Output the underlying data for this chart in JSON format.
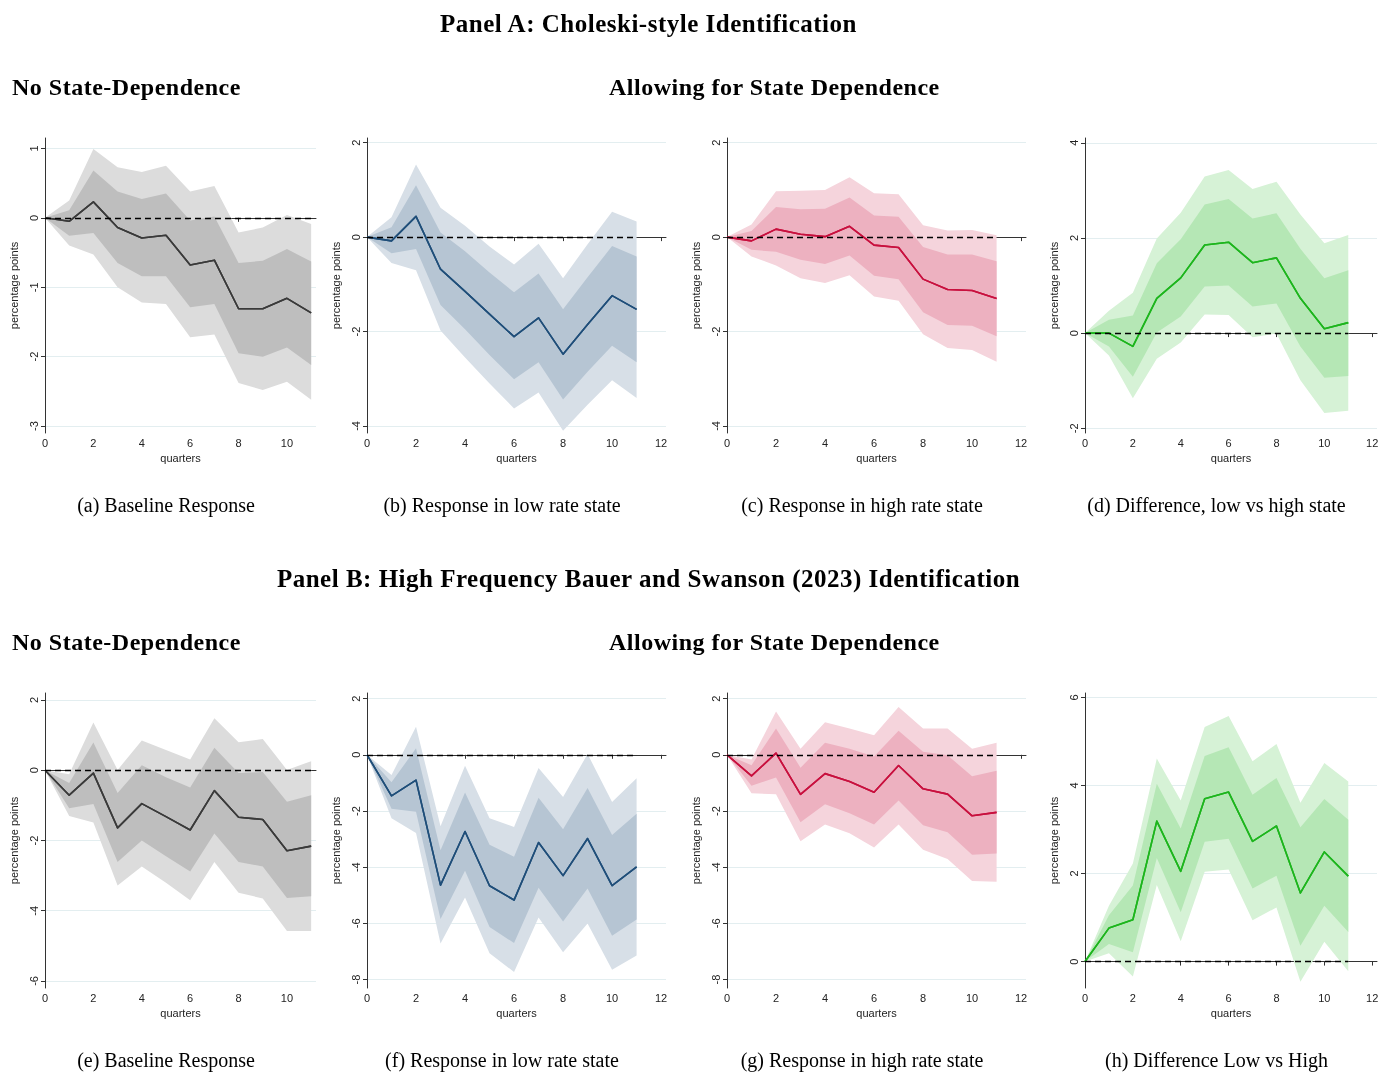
{
  "chart_data": [
    {
      "type": "other",
      "title": "Panel A: Choleski-style Identification",
      "annotations": [
        "No State-Dependence",
        "Allowing for State Dependence"
      ]
    },
    {
      "type": "line",
      "xlabel": "quarters",
      "ylabel": "percentage points",
      "annotations": [
        "(a) Baseline Response"
      ],
      "x": [
        0,
        1,
        2,
        3,
        4,
        5,
        6,
        7,
        8,
        9,
        10,
        11
      ],
      "xlim": [
        0,
        11.2
      ],
      "xticks": [
        0,
        2,
        4,
        6,
        8,
        10
      ],
      "ylim": [
        -3.1,
        1.15
      ],
      "yticks": [
        -3,
        -2,
        -1,
        0,
        1
      ],
      "grid": "y",
      "marker": "none",
      "ref_lines": [
        {
          "axis": "y",
          "value": 0,
          "line_style": "dashed",
          "color": "#000000"
        }
      ],
      "series": [
        {
          "color": "#3a3a3a",
          "values": [
            0,
            -0.05,
            0.23,
            -0.14,
            -0.29,
            -0.25,
            -0.68,
            -0.61,
            -1.31,
            -1.31,
            -1.16,
            -1.37
          ],
          "lower": [
            0,
            -0.4,
            -0.53,
            -1.0,
            -1.22,
            -1.24,
            -1.72,
            -1.68,
            -2.38,
            -2.48,
            -2.36,
            -2.62
          ],
          "upper": [
            0,
            0.25,
            0.99,
            0.73,
            0.66,
            0.75,
            0.38,
            0.46,
            -0.21,
            -0.14,
            0.04,
            -0.09
          ]
        },
        {
          "color": "#3a3a3a",
          "values": [
            0,
            -0.05,
            0.23,
            -0.14,
            -0.29,
            -0.25,
            -0.68,
            -0.61,
            -1.31,
            -1.31,
            -1.16,
            -1.37
          ],
          "lower": [
            0,
            -0.26,
            -0.22,
            -0.65,
            -0.84,
            -0.84,
            -1.29,
            -1.24,
            -1.95,
            -2.0,
            -1.87,
            -2.12
          ],
          "upper": [
            0,
            0.11,
            0.68,
            0.38,
            0.27,
            0.35,
            -0.04,
            0.02,
            -0.65,
            -0.62,
            -0.45,
            -0.63
          ]
        }
      ]
    },
    {
      "type": "line",
      "xlabel": "quarters",
      "ylabel": "percentage points",
      "annotations": [
        "(b) Response in low rate state"
      ],
      "x": [
        0,
        1,
        2,
        3,
        4,
        5,
        6,
        7,
        8,
        9,
        10,
        11
      ],
      "xlim": [
        0,
        12.2
      ],
      "xticks": [
        0,
        2,
        4,
        6,
        8,
        10,
        12
      ],
      "ylim": [
        -4.15,
        2.1
      ],
      "yticks": [
        -4,
        -2,
        0,
        2
      ],
      "grid": "y",
      "marker": "none",
      "ref_lines": [
        {
          "axis": "y",
          "value": 0,
          "line_style": "dashed",
          "color": "#000000"
        }
      ],
      "series": [
        {
          "color": "#1f4e79",
          "values": [
            0,
            -0.08,
            0.44,
            -0.68,
            -1.15,
            -1.63,
            -2.11,
            -1.71,
            -2.48,
            -1.85,
            -1.24,
            -1.53
          ],
          "lower": [
            0,
            -0.55,
            -0.7,
            -1.98,
            -2.55,
            -3.1,
            -3.63,
            -3.29,
            -4.1,
            -3.55,
            -3.03,
            -3.41
          ],
          "upper": [
            0,
            0.42,
            1.54,
            0.62,
            0.24,
            -0.2,
            -0.58,
            -0.14,
            -0.87,
            -0.15,
            0.54,
            0.33
          ]
        },
        {
          "color": "#1f4e79",
          "values": [
            0,
            -0.08,
            0.44,
            -0.68,
            -1.15,
            -1.63,
            -2.11,
            -1.71,
            -2.48,
            -1.85,
            -1.24,
            -1.53
          ],
          "lower": [
            0,
            -0.34,
            -0.25,
            -1.44,
            -1.95,
            -2.5,
            -3.01,
            -2.65,
            -3.44,
            -2.85,
            -2.3,
            -2.65
          ],
          "upper": [
            0,
            0.21,
            1.1,
            0.1,
            -0.3,
            -0.75,
            -1.17,
            -0.77,
            -1.53,
            -0.85,
            -0.19,
            -0.41
          ]
        }
      ]
    },
    {
      "type": "line",
      "xlabel": "quarters",
      "ylabel": "percentage points",
      "annotations": [
        "(c) Response in high rate state"
      ],
      "x": [
        0,
        1,
        2,
        3,
        4,
        5,
        6,
        7,
        8,
        9,
        10,
        11
      ],
      "xlim": [
        0,
        12.2
      ],
      "xticks": [
        0,
        2,
        4,
        6,
        8,
        10,
        12
      ],
      "ylim": [
        -4.15,
        2.1
      ],
      "yticks": [
        -4,
        -2,
        0,
        2
      ],
      "grid": "y",
      "marker": "none",
      "ref_lines": [
        {
          "axis": "y",
          "value": 0,
          "line_style": "dashed",
          "color": "#000000"
        }
      ],
      "series": [
        {
          "color": "#c8103e",
          "values": [
            0,
            -0.08,
            0.17,
            0.06,
            0.01,
            0.23,
            -0.17,
            -0.22,
            -0.89,
            -1.11,
            -1.13,
            -1.3
          ],
          "lower": [
            0,
            -0.41,
            -0.6,
            -0.87,
            -0.97,
            -0.81,
            -1.26,
            -1.35,
            -2.06,
            -2.35,
            -2.39,
            -2.64
          ],
          "upper": [
            0,
            0.27,
            0.97,
            0.98,
            1.0,
            1.27,
            0.93,
            0.91,
            0.25,
            0.14,
            0.15,
            0.04
          ]
        },
        {
          "color": "#c8103e",
          "values": [
            0,
            -0.08,
            0.17,
            0.06,
            0.01,
            0.23,
            -0.17,
            -0.22,
            -0.89,
            -1.11,
            -1.13,
            -1.3
          ],
          "lower": [
            0,
            -0.27,
            -0.31,
            -0.48,
            -0.57,
            -0.39,
            -0.82,
            -0.89,
            -1.59,
            -1.86,
            -1.88,
            -2.1
          ],
          "upper": [
            0,
            0.13,
            0.64,
            0.59,
            0.6,
            0.84,
            0.46,
            0.43,
            -0.21,
            -0.37,
            -0.37,
            -0.51
          ]
        }
      ]
    },
    {
      "type": "line",
      "xlabel": "quarters",
      "ylabel": "percentage points",
      "annotations": [
        "(d) Difference, low vs high state"
      ],
      "x": [
        0,
        1,
        2,
        3,
        4,
        5,
        6,
        7,
        8,
        9,
        10,
        11
      ],
      "xlim": [
        0,
        12.2
      ],
      "xticks": [
        0,
        2,
        4,
        6,
        8,
        10,
        12
      ],
      "ylim": [
        -2.1,
        4.1
      ],
      "yticks": [
        -2,
        0,
        2,
        4
      ],
      "grid": "y",
      "marker": "none",
      "ref_lines": [
        {
          "axis": "y",
          "value": 0,
          "line_style": "dashed",
          "color": "#000000"
        }
      ],
      "series": [
        {
          "color": "#1db51d",
          "values": [
            0,
            0,
            -0.28,
            0.73,
            1.16,
            1.85,
            1.91,
            1.48,
            1.58,
            0.73,
            0.09,
            0.22
          ],
          "lower": [
            0,
            -0.47,
            -1.37,
            -0.54,
            -0.2,
            0.39,
            0.38,
            -0.09,
            -0.01,
            -0.99,
            -1.68,
            -1.63
          ],
          "upper": [
            0,
            0.47,
            0.85,
            1.99,
            2.53,
            3.29,
            3.43,
            3.03,
            3.18,
            2.49,
            1.89,
            2.06
          ]
        },
        {
          "color": "#1db51d",
          "values": [
            0,
            0,
            -0.28,
            0.73,
            1.16,
            1.85,
            1.91,
            1.48,
            1.58,
            0.73,
            0.09,
            0.22
          ],
          "lower": [
            0,
            -0.28,
            -0.92,
            0.01,
            0.35,
            0.98,
            1.0,
            0.56,
            0.62,
            -0.28,
            -0.94,
            -0.9
          ],
          "upper": [
            0,
            0.28,
            0.37,
            1.47,
            1.97,
            2.7,
            2.82,
            2.41,
            2.52,
            1.77,
            1.15,
            1.32
          ]
        }
      ]
    },
    {
      "type": "other",
      "title": "Panel B: High Frequency Bauer and Swanson (2023) Identification",
      "annotations": [
        "No State-Dependence",
        "Allowing for State Dependence"
      ]
    },
    {
      "type": "line",
      "xlabel": "quarters",
      "ylabel": "percentage points",
      "annotations": [
        "(e) Baseline Response"
      ],
      "x": [
        0,
        1,
        2,
        3,
        4,
        5,
        6,
        7,
        8,
        9,
        10,
        11
      ],
      "xlim": [
        0,
        11.2
      ],
      "xticks": [
        0,
        2,
        4,
        6,
        8,
        10
      ],
      "ylim": [
        -6.2,
        2.2
      ],
      "yticks": [
        -6,
        -4,
        -2,
        0,
        2
      ],
      "grid": "y",
      "marker": "none",
      "ref_lines": [
        {
          "axis": "y",
          "value": 0,
          "line_style": "dashed",
          "color": "#000000"
        }
      ],
      "series": [
        {
          "color": "#3a3a3a",
          "values": [
            0,
            -0.71,
            -0.08,
            -1.64,
            -0.95,
            -1.32,
            -1.7,
            -0.58,
            -1.34,
            -1.4,
            -2.29,
            -2.16
          ],
          "lower": [
            0,
            -1.3,
            -1.49,
            -3.28,
            -2.74,
            -3.2,
            -3.7,
            -2.61,
            -3.49,
            -3.65,
            -4.58,
            -4.58
          ],
          "upper": [
            0,
            -0.11,
            1.36,
            0.01,
            0.85,
            0.58,
            0.31,
            1.48,
            0.8,
            0.89,
            0.01,
            0.26
          ]
        },
        {
          "color": "#3a3a3a",
          "values": [
            0,
            -0.71,
            -0.08,
            -1.64,
            -0.95,
            -1.32,
            -1.7,
            -0.58,
            -1.34,
            -1.4,
            -2.29,
            -2.16
          ],
          "lower": [
            0,
            -1.08,
            -0.96,
            -2.61,
            -2.0,
            -2.45,
            -2.88,
            -1.8,
            -2.61,
            -2.74,
            -3.64,
            -3.59
          ],
          "upper": [
            0,
            -0.36,
            0.79,
            -0.65,
            0.14,
            -0.2,
            -0.49,
            0.64,
            -0.08,
            -0.05,
            -0.9,
            -0.71
          ]
        }
      ]
    },
    {
      "type": "line",
      "xlabel": "quarters",
      "ylabel": "percentage points",
      "annotations": [
        "(f) Response in low rate state"
      ],
      "x": [
        0,
        1,
        2,
        3,
        4,
        5,
        6,
        7,
        8,
        9,
        10,
        11
      ],
      "xlim": [
        0,
        12.2
      ],
      "xticks": [
        0,
        2,
        4,
        6,
        8,
        10,
        12
      ],
      "ylim": [
        -8.3,
        2.2
      ],
      "yticks": [
        -8,
        -6,
        -4,
        -2,
        0,
        2
      ],
      "grid": "y",
      "marker": "none",
      "ref_lines": [
        {
          "axis": "y",
          "value": 0,
          "line_style": "dashed",
          "color": "#000000"
        }
      ],
      "series": [
        {
          "color": "#1f4e79",
          "values": [
            0,
            -1.46,
            -0.9,
            -4.64,
            -2.73,
            -4.66,
            -5.17,
            -3.12,
            -4.3,
            -2.98,
            -4.66,
            -3.99
          ],
          "lower": [
            0,
            -2.26,
            -2.78,
            -6.72,
            -5.08,
            -7.06,
            -7.73,
            -5.79,
            -7.03,
            -6.0,
            -7.65,
            -7.14
          ],
          "upper": [
            0,
            -0.72,
            1.0,
            -2.54,
            -0.39,
            -2.26,
            -2.57,
            -0.47,
            -1.5,
            0.03,
            -1.68,
            -0.83
          ]
        },
        {
          "color": "#1f4e79",
          "values": [
            0,
            -1.46,
            -0.9,
            -4.64,
            -2.73,
            -4.66,
            -5.17,
            -3.12,
            -4.3,
            -2.98,
            -4.66,
            -3.99
          ],
          "lower": [
            0,
            -1.92,
            -2.03,
            -5.84,
            -4.13,
            -6.13,
            -6.7,
            -4.73,
            -5.93,
            -4.76,
            -6.44,
            -5.86
          ],
          "upper": [
            0,
            -0.98,
            0.23,
            -3.4,
            -1.34,
            -3.2,
            -3.63,
            -1.53,
            -2.65,
            -1.18,
            -2.85,
            -2.1
          ]
        }
      ]
    },
    {
      "type": "line",
      "xlabel": "quarters",
      "ylabel": "percentage points",
      "annotations": [
        "(g) Response in high rate state"
      ],
      "x": [
        0,
        1,
        2,
        3,
        4,
        5,
        6,
        7,
        8,
        9,
        10,
        11
      ],
      "xlim": [
        0,
        12.2
      ],
      "xticks": [
        0,
        2,
        4,
        6,
        8,
        10,
        12
      ],
      "ylim": [
        -8.3,
        2.2
      ],
      "yticks": [
        -8,
        -6,
        -4,
        -2,
        0,
        2
      ],
      "grid": "y",
      "marker": "none",
      "ref_lines": [
        {
          "axis": "y",
          "value": 0,
          "line_style": "dashed",
          "color": "#000000"
        }
      ],
      "series": [
        {
          "color": "#c8103e",
          "values": [
            0,
            -0.75,
            0.06,
            -1.41,
            -0.67,
            -0.95,
            -1.33,
            -0.38,
            -1.21,
            -1.4,
            -2.17,
            -2.05
          ],
          "lower": [
            0,
            -1.37,
            -1.4,
            -3.08,
            -2.48,
            -2.79,
            -3.3,
            -2.48,
            -3.38,
            -3.71,
            -4.49,
            -4.52
          ],
          "upper": [
            0,
            -0.17,
            1.54,
            0.22,
            1.16,
            0.94,
            0.7,
            1.7,
            0.94,
            0.94,
            0.22,
            0.43
          ]
        },
        {
          "color": "#c8103e",
          "values": [
            0,
            -0.75,
            0.06,
            -1.41,
            -0.67,
            -0.95,
            -1.33,
            -0.38,
            -1.21,
            -1.4,
            -2.17,
            -2.05
          ],
          "lower": [
            0,
            -1.1,
            -0.81,
            -2.4,
            -1.76,
            -2.08,
            -2.48,
            -1.63,
            -2.51,
            -2.76,
            -3.56,
            -3.51
          ],
          "upper": [
            0,
            -0.37,
            0.94,
            -0.46,
            0.43,
            0.22,
            -0.06,
            0.86,
            0.11,
            -0.02,
            -0.76,
            -0.57
          ]
        }
      ]
    },
    {
      "type": "line",
      "xlabel": "quarters",
      "ylabel": "percentage points",
      "annotations": [
        "(h) Difference Low vs High"
      ],
      "x": [
        0,
        1,
        2,
        3,
        4,
        5,
        6,
        7,
        8,
        9,
        10,
        11
      ],
      "xlim": [
        0,
        12.2
      ],
      "xticks": [
        0,
        2,
        4,
        6,
        8,
        10,
        12
      ],
      "ylim": [
        -0.6,
        6.1
      ],
      "yticks": [
        0,
        2,
        4,
        6
      ],
      "grid": "y",
      "marker": "none",
      "ref_lines": [
        {
          "axis": "y",
          "value": 0,
          "line_style": "dashed",
          "color": "#000000"
        }
      ],
      "series": [
        {
          "color": "#1db51d",
          "values": [
            0,
            0.76,
            0.95,
            3.19,
            2.05,
            3.7,
            3.85,
            2.73,
            3.08,
            1.56,
            2.49,
            1.94
          ],
          "lower": [
            0,
            0.19,
            -0.34,
            1.74,
            0.46,
            2.04,
            2.09,
            0.94,
            1.23,
            -0.46,
            0.45,
            -0.22
          ],
          "upper": [
            0,
            1.27,
            2.23,
            4.61,
            3.66,
            5.33,
            5.58,
            4.55,
            4.94,
            3.61,
            4.51,
            4.09
          ]
        },
        {
          "color": "#1db51d",
          "values": [
            0,
            0.76,
            0.95,
            3.19,
            2.05,
            3.7,
            3.85,
            2.73,
            3.08,
            1.56,
            2.49,
            1.94
          ],
          "lower": [
            0,
            0.4,
            0.21,
            2.35,
            1.12,
            2.72,
            2.79,
            1.66,
            1.95,
            0.36,
            1.27,
            0.67
          ],
          "upper": [
            0,
            1.05,
            1.73,
            4.04,
            3.02,
            4.67,
            4.87,
            3.79,
            4.17,
            3.05,
            3.69,
            3.22
          ]
        }
      ]
    }
  ]
}
